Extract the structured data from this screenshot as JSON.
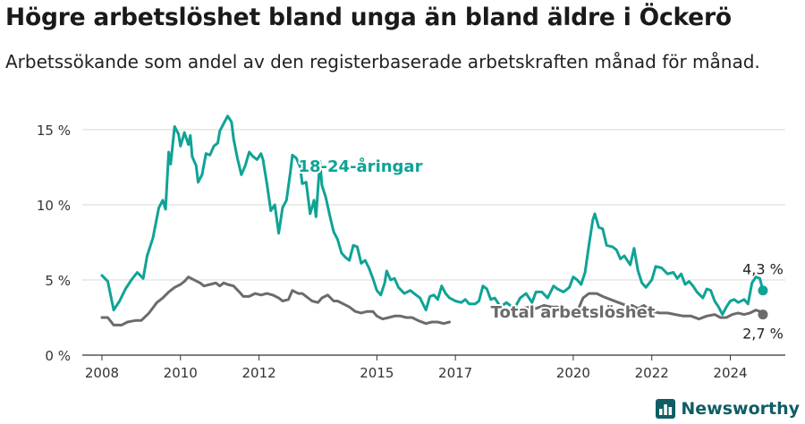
{
  "title": "Högre arbetslöshet bland unga än bland äldre i Öckerö",
  "subtitle": "Arbetssökande som andel av den registerbaserade arbetskraften månad för månad.",
  "brand": "Newsworthy",
  "colors": {
    "youth": "#0fa396",
    "total": "#6b6b6b",
    "grid": "#d9d9d9",
    "axis": "#333333",
    "brand": "#0f5e63"
  },
  "chart_data": {
    "type": "line",
    "title": "Högre arbetslöshet bland unga än bland äldre i Öckerö",
    "xlim": [
      2007.5,
      2025.4
    ],
    "ylim": [
      0,
      16
    ],
    "x_ticks": [
      2008,
      2010,
      2012,
      2015,
      2017,
      2020,
      2022,
      2024
    ],
    "y_ticks": [
      {
        "value": 0,
        "label": "0 %"
      },
      {
        "value": 5,
        "label": "5 %"
      },
      {
        "value": 10,
        "label": "10 %"
      },
      {
        "value": 15,
        "label": "15 %"
      }
    ],
    "grid": true,
    "series": [
      {
        "name": "18-24-åringar",
        "color": "#0fa396",
        "end_label": "4,3 %",
        "points": [
          [
            2008.0,
            5.3
          ],
          [
            2008.15,
            4.9
          ],
          [
            2008.3,
            3.0
          ],
          [
            2008.45,
            3.6
          ],
          [
            2008.6,
            4.4
          ],
          [
            2008.75,
            5.0
          ],
          [
            2008.9,
            5.5
          ],
          [
            2009.05,
            5.1
          ],
          [
            2009.15,
            6.6
          ],
          [
            2009.3,
            7.8
          ],
          [
            2009.45,
            9.8
          ],
          [
            2009.55,
            10.3
          ],
          [
            2009.62,
            9.7
          ],
          [
            2009.7,
            13.5
          ],
          [
            2009.75,
            12.7
          ],
          [
            2009.85,
            15.2
          ],
          [
            2009.95,
            14.7
          ],
          [
            2010.0,
            13.9
          ],
          [
            2010.1,
            14.8
          ],
          [
            2010.2,
            14.0
          ],
          [
            2010.25,
            14.6
          ],
          [
            2010.3,
            13.2
          ],
          [
            2010.4,
            12.6
          ],
          [
            2010.45,
            11.5
          ],
          [
            2010.55,
            12.0
          ],
          [
            2010.65,
            13.4
          ],
          [
            2010.75,
            13.3
          ],
          [
            2010.85,
            13.9
          ],
          [
            2010.95,
            14.1
          ],
          [
            2011.0,
            14.9
          ],
          [
            2011.1,
            15.4
          ],
          [
            2011.2,
            15.9
          ],
          [
            2011.3,
            15.5
          ],
          [
            2011.35,
            14.4
          ],
          [
            2011.45,
            13.1
          ],
          [
            2011.55,
            12.0
          ],
          [
            2011.65,
            12.6
          ],
          [
            2011.75,
            13.5
          ],
          [
            2011.85,
            13.2
          ],
          [
            2011.95,
            13.0
          ],
          [
            2012.05,
            13.4
          ],
          [
            2012.1,
            13.0
          ],
          [
            2012.2,
            11.4
          ],
          [
            2012.3,
            9.6
          ],
          [
            2012.4,
            10.0
          ],
          [
            2012.5,
            8.1
          ],
          [
            2012.6,
            9.8
          ],
          [
            2012.7,
            10.3
          ],
          [
            2012.8,
            12.2
          ],
          [
            2012.85,
            13.3
          ],
          [
            2012.95,
            13.1
          ],
          [
            2013.05,
            12.5
          ],
          [
            2013.1,
            11.4
          ],
          [
            2013.2,
            11.5
          ],
          [
            2013.3,
            9.4
          ],
          [
            2013.4,
            10.3
          ],
          [
            2013.45,
            9.2
          ],
          [
            2013.55,
            12.9
          ],
          [
            2013.6,
            11.3
          ],
          [
            2013.7,
            10.5
          ],
          [
            2013.8,
            9.3
          ],
          [
            2013.9,
            8.2
          ],
          [
            2014.0,
            7.7
          ],
          [
            2014.1,
            6.8
          ],
          [
            2014.2,
            6.5
          ],
          [
            2014.3,
            6.3
          ],
          [
            2014.4,
            7.3
          ],
          [
            2014.5,
            7.2
          ],
          [
            2014.6,
            6.1
          ],
          [
            2014.7,
            6.3
          ],
          [
            2014.8,
            5.8
          ],
          [
            2014.9,
            5.1
          ],
          [
            2015.0,
            4.3
          ],
          [
            2015.1,
            4.0
          ],
          [
            2015.2,
            4.8
          ],
          [
            2015.25,
            5.6
          ],
          [
            2015.35,
            5.0
          ],
          [
            2015.45,
            5.1
          ],
          [
            2015.55,
            4.5
          ],
          [
            2015.7,
            4.1
          ],
          [
            2015.85,
            4.3
          ],
          [
            2016.0,
            4.0
          ],
          [
            2016.1,
            3.8
          ],
          [
            2016.25,
            3.0
          ],
          [
            2016.35,
            3.9
          ],
          [
            2016.45,
            4.0
          ],
          [
            2016.55,
            3.7
          ],
          [
            2016.65,
            4.6
          ],
          [
            2016.75,
            4.1
          ],
          [
            2016.85,
            3.8
          ],
          [
            2017.0,
            3.6
          ],
          [
            2017.15,
            3.5
          ],
          [
            2017.25,
            3.7
          ],
          [
            2017.35,
            3.4
          ],
          [
            2017.5,
            3.4
          ],
          [
            2017.6,
            3.6
          ],
          [
            2017.7,
            4.6
          ],
          [
            2017.8,
            4.4
          ],
          [
            2017.9,
            3.7
          ],
          [
            2018.0,
            3.8
          ],
          [
            2018.15,
            3.2
          ],
          [
            2018.3,
            3.5
          ],
          [
            2018.5,
            3.1
          ],
          [
            2018.65,
            3.8
          ],
          [
            2018.8,
            4.1
          ],
          [
            2018.95,
            3.5
          ],
          [
            2019.05,
            4.2
          ],
          [
            2019.2,
            4.2
          ],
          [
            2019.35,
            3.8
          ],
          [
            2019.5,
            4.6
          ],
          [
            2019.6,
            4.4
          ],
          [
            2019.75,
            4.2
          ],
          [
            2019.9,
            4.5
          ],
          [
            2020.0,
            5.2
          ],
          [
            2020.1,
            5.0
          ],
          [
            2020.2,
            4.7
          ],
          [
            2020.3,
            5.5
          ],
          [
            2020.4,
            7.3
          ],
          [
            2020.5,
            9.0
          ],
          [
            2020.55,
            9.4
          ],
          [
            2020.65,
            8.5
          ],
          [
            2020.75,
            8.4
          ],
          [
            2020.85,
            7.3
          ],
          [
            2021.0,
            7.2
          ],
          [
            2021.1,
            7.0
          ],
          [
            2021.2,
            6.4
          ],
          [
            2021.3,
            6.6
          ],
          [
            2021.45,
            6.0
          ],
          [
            2021.55,
            7.1
          ],
          [
            2021.65,
            5.6
          ],
          [
            2021.75,
            4.8
          ],
          [
            2021.85,
            4.5
          ],
          [
            2022.0,
            5.0
          ],
          [
            2022.1,
            5.9
          ],
          [
            2022.25,
            5.8
          ],
          [
            2022.4,
            5.4
          ],
          [
            2022.55,
            5.5
          ],
          [
            2022.65,
            5.1
          ],
          [
            2022.75,
            5.4
          ],
          [
            2022.85,
            4.7
          ],
          [
            2022.95,
            4.9
          ],
          [
            2023.05,
            4.6
          ],
          [
            2023.15,
            4.2
          ],
          [
            2023.3,
            3.8
          ],
          [
            2023.4,
            4.4
          ],
          [
            2023.5,
            4.3
          ],
          [
            2023.6,
            3.6
          ],
          [
            2023.7,
            3.2
          ],
          [
            2023.8,
            2.7
          ],
          [
            2023.9,
            3.2
          ],
          [
            2024.0,
            3.6
          ],
          [
            2024.1,
            3.7
          ],
          [
            2024.2,
            3.5
          ],
          [
            2024.35,
            3.7
          ],
          [
            2024.45,
            3.4
          ],
          [
            2024.55,
            4.8
          ],
          [
            2024.65,
            5.2
          ],
          [
            2024.75,
            5.1
          ],
          [
            2024.83,
            4.3
          ]
        ]
      },
      {
        "name": "Total arbetslöshet",
        "color": "#6b6b6b",
        "end_label": "2,7 %",
        "points": [
          [
            2008.0,
            2.5
          ],
          [
            2008.15,
            2.5
          ],
          [
            2008.3,
            2.0
          ],
          [
            2008.5,
            2.0
          ],
          [
            2008.65,
            2.2
          ],
          [
            2008.85,
            2.3
          ],
          [
            2009.0,
            2.3
          ],
          [
            2009.2,
            2.8
          ],
          [
            2009.4,
            3.5
          ],
          [
            2009.55,
            3.8
          ],
          [
            2009.7,
            4.2
          ],
          [
            2009.85,
            4.5
          ],
          [
            2010.0,
            4.7
          ],
          [
            2010.1,
            4.9
          ],
          [
            2010.2,
            5.2
          ],
          [
            2010.35,
            5.0
          ],
          [
            2010.5,
            4.8
          ],
          [
            2010.6,
            4.6
          ],
          [
            2010.75,
            4.7
          ],
          [
            2010.9,
            4.8
          ],
          [
            2011.0,
            4.6
          ],
          [
            2011.1,
            4.8
          ],
          [
            2011.2,
            4.7
          ],
          [
            2011.35,
            4.6
          ],
          [
            2011.5,
            4.2
          ],
          [
            2011.6,
            3.9
          ],
          [
            2011.75,
            3.9
          ],
          [
            2011.9,
            4.1
          ],
          [
            2012.05,
            4.0
          ],
          [
            2012.2,
            4.1
          ],
          [
            2012.35,
            4.0
          ],
          [
            2012.5,
            3.8
          ],
          [
            2012.6,
            3.6
          ],
          [
            2012.75,
            3.7
          ],
          [
            2012.85,
            4.3
          ],
          [
            2013.0,
            4.1
          ],
          [
            2013.1,
            4.1
          ],
          [
            2013.2,
            3.9
          ],
          [
            2013.35,
            3.6
          ],
          [
            2013.5,
            3.5
          ],
          [
            2013.6,
            3.8
          ],
          [
            2013.75,
            4.0
          ],
          [
            2013.9,
            3.6
          ],
          [
            2014.0,
            3.6
          ],
          [
            2014.15,
            3.4
          ],
          [
            2014.3,
            3.2
          ],
          [
            2014.45,
            2.9
          ],
          [
            2014.6,
            2.8
          ],
          [
            2014.75,
            2.9
          ],
          [
            2014.9,
            2.9
          ],
          [
            2015.0,
            2.6
          ],
          [
            2015.15,
            2.4
          ],
          [
            2015.3,
            2.5
          ],
          [
            2015.45,
            2.6
          ],
          [
            2015.6,
            2.6
          ],
          [
            2015.75,
            2.5
          ],
          [
            2015.9,
            2.5
          ],
          [
            2016.05,
            2.3
          ],
          [
            2016.25,
            2.1
          ],
          [
            2016.4,
            2.2
          ],
          [
            2016.55,
            2.2
          ],
          [
            2016.7,
            2.1
          ],
          [
            2016.85,
            2.2
          ],
          [
            2018.5,
            3.0
          ],
          [
            2018.7,
            3.1
          ],
          [
            2018.9,
            3.2
          ],
          [
            2019.05,
            3.1
          ],
          [
            2019.25,
            3.3
          ],
          [
            2019.45,
            3.2
          ],
          [
            2019.6,
            3.2
          ],
          [
            2019.8,
            3.0
          ],
          [
            2020.0,
            3.0
          ],
          [
            2020.1,
            2.9
          ],
          [
            2020.25,
            3.8
          ],
          [
            2020.4,
            4.1
          ],
          [
            2020.6,
            4.1
          ],
          [
            2020.75,
            3.9
          ],
          [
            2020.95,
            3.7
          ],
          [
            2021.15,
            3.5
          ],
          [
            2021.35,
            3.3
          ],
          [
            2021.5,
            3.3
          ],
          [
            2021.65,
            3.1
          ],
          [
            2021.8,
            3.3
          ],
          [
            2022.0,
            2.9
          ],
          [
            2022.2,
            2.8
          ],
          [
            2022.4,
            2.8
          ],
          [
            2022.6,
            2.7
          ],
          [
            2022.8,
            2.6
          ],
          [
            2023.0,
            2.6
          ],
          [
            2023.2,
            2.4
          ],
          [
            2023.4,
            2.6
          ],
          [
            2023.6,
            2.7
          ],
          [
            2023.75,
            2.5
          ],
          [
            2023.9,
            2.5
          ],
          [
            2024.05,
            2.7
          ],
          [
            2024.2,
            2.8
          ],
          [
            2024.35,
            2.7
          ],
          [
            2024.5,
            2.8
          ],
          [
            2024.65,
            3.0
          ],
          [
            2024.75,
            2.9
          ],
          [
            2024.83,
            2.7
          ]
        ]
      }
    ],
    "annotations": [
      {
        "text": "18-24-åringar",
        "series": 0,
        "x": 2013.0,
        "y": 12.2
      },
      {
        "text": "Total arbetslöshet",
        "series": 1,
        "x": 2017.9,
        "y": 2.5
      }
    ]
  }
}
